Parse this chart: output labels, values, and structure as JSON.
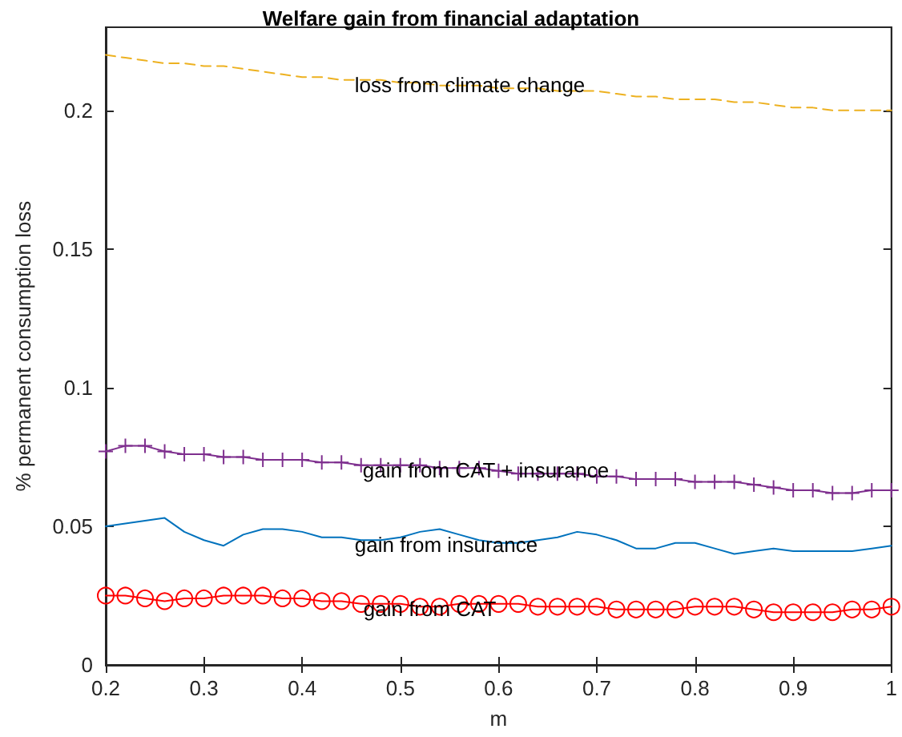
{
  "chart_data": {
    "type": "line",
    "title": "Welfare gain from financial adaptation",
    "xlabel": "m",
    "ylabel": "% permanent consumption loss",
    "x": [
      0.2,
      0.22,
      0.24,
      0.26,
      0.28,
      0.3,
      0.32,
      0.34,
      0.36,
      0.38,
      0.4,
      0.42,
      0.44,
      0.46,
      0.48,
      0.5,
      0.52,
      0.54,
      0.56,
      0.58,
      0.6,
      0.62,
      0.64,
      0.66,
      0.68,
      0.7,
      0.72,
      0.74,
      0.76,
      0.78,
      0.8,
      0.82,
      0.84,
      0.86,
      0.88,
      0.9,
      0.92,
      0.94,
      0.96,
      0.98,
      1
    ],
    "series": [
      {
        "name": "loss from climate change",
        "color": "#edb120",
        "line_style": "dashed",
        "marker": "none",
        "values": [
          0.22,
          0.219,
          0.218,
          0.217,
          0.217,
          0.216,
          0.216,
          0.215,
          0.214,
          0.213,
          0.212,
          0.212,
          0.211,
          0.211,
          0.211,
          0.21,
          0.21,
          0.209,
          0.209,
          0.209,
          0.208,
          0.208,
          0.208,
          0.207,
          0.207,
          0.207,
          0.206,
          0.205,
          0.205,
          0.204,
          0.204,
          0.204,
          0.203,
          0.203,
          0.202,
          0.201,
          0.201,
          0.2,
          0.2,
          0.2,
          0.2
        ]
      },
      {
        "name": "gain from CAT + insurance",
        "color": "#7e2f8e",
        "line_style": "solid",
        "marker": "cross",
        "values": [
          0.077,
          0.079,
          0.079,
          0.077,
          0.076,
          0.076,
          0.075,
          0.075,
          0.074,
          0.074,
          0.074,
          0.073,
          0.073,
          0.072,
          0.072,
          0.072,
          0.072,
          0.071,
          0.071,
          0.071,
          0.07,
          0.069,
          0.069,
          0.069,
          0.069,
          0.068,
          0.068,
          0.067,
          0.067,
          0.067,
          0.066,
          0.066,
          0.066,
          0.065,
          0.064,
          0.063,
          0.063,
          0.062,
          0.062,
          0.063,
          0.063
        ]
      },
      {
        "name": "gain from insurance",
        "color": "#0072bd",
        "line_style": "solid",
        "marker": "none",
        "values": [
          0.05,
          0.051,
          0.052,
          0.053,
          0.048,
          0.045,
          0.043,
          0.047,
          0.049,
          0.049,
          0.048,
          0.046,
          0.046,
          0.045,
          0.045,
          0.046,
          0.048,
          0.049,
          0.047,
          0.045,
          0.044,
          0.044,
          0.045,
          0.046,
          0.048,
          0.047,
          0.045,
          0.042,
          0.042,
          0.044,
          0.044,
          0.042,
          0.04,
          0.041,
          0.042,
          0.041,
          0.041,
          0.041,
          0.041,
          0.042,
          0.043
        ]
      },
      {
        "name": "gain from CAT",
        "color": "#ff0000",
        "line_style": "solid",
        "marker": "circle",
        "values": [
          0.025,
          0.025,
          0.024,
          0.023,
          0.024,
          0.024,
          0.025,
          0.025,
          0.025,
          0.024,
          0.024,
          0.023,
          0.023,
          0.022,
          0.022,
          0.022,
          0.021,
          0.021,
          0.022,
          0.022,
          0.022,
          0.022,
          0.021,
          0.021,
          0.021,
          0.021,
          0.02,
          0.02,
          0.02,
          0.02,
          0.021,
          0.021,
          0.021,
          0.02,
          0.019,
          0.019,
          0.019,
          0.019,
          0.02,
          0.02,
          0.021
        ]
      }
    ],
    "xlim": [
      0.2,
      1
    ],
    "xticks": [
      0.2,
      0.3,
      0.4,
      0.5,
      0.6,
      0.7,
      0.8,
      0.9,
      1
    ],
    "ylim": [
      0,
      0.23
    ],
    "yticks": [
      0,
      0.05,
      0.1,
      0.15,
      0.2
    ],
    "grid": false
  }
}
